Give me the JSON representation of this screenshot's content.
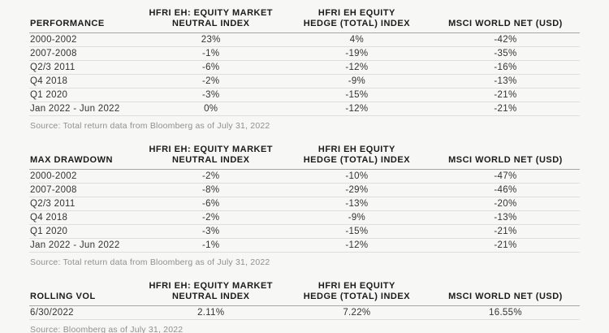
{
  "colors": {
    "background": "#f7f7f5",
    "header_text": "#1b1b1b",
    "body_text": "#333333",
    "source_text": "#8f8f8f",
    "header_divider": "#a6a6a6",
    "row_divider": "#dedede"
  },
  "chart_data": [
    {
      "type": "table",
      "title": "PERFORMANCE",
      "columns": [
        "HFRI EH: EQUITY MARKET\nNEUTRAL INDEX",
        "HFRI EH EQUITY\nHEDGE (TOTAL) INDEX",
        "MSCI WORLD NET (USD)"
      ],
      "rows": [
        [
          "2000-2002",
          "23%",
          "4%",
          "-42%"
        ],
        [
          "2007-2008",
          "-1%",
          "-19%",
          "-35%"
        ],
        [
          "Q2/3 2011",
          "-6%",
          "-12%",
          "-16%"
        ],
        [
          "Q4 2018",
          "-2%",
          "-9%",
          "-13%"
        ],
        [
          "Q1 2020",
          "-3%",
          "-15%",
          "-21%"
        ],
        [
          "Jan 2022 - Jun 2022",
          "0%",
          "-12%",
          "-21%"
        ]
      ],
      "source": "Source: Total return data from Bloomberg as of July 31, 2022"
    },
    {
      "type": "table",
      "title": "MAX DRAWDOWN",
      "columns": [
        "HFRI EH: EQUITY MARKET\nNEUTRAL INDEX",
        "HFRI EH EQUITY\nHEDGE (TOTAL) INDEX",
        "MSCI WORLD NET (USD)"
      ],
      "rows": [
        [
          "2000-2002",
          "-2%",
          "-10%",
          "-47%"
        ],
        [
          "2007-2008",
          "-8%",
          "-29%",
          "-46%"
        ],
        [
          "Q2/3 2011",
          "-6%",
          "-13%",
          "-20%"
        ],
        [
          "Q4 2018",
          "-2%",
          "-9%",
          "-13%"
        ],
        [
          "Q1 2020",
          "-3%",
          "-15%",
          "-21%"
        ],
        [
          "Jan 2022 - Jun 2022",
          "-1%",
          "-12%",
          "-21%"
        ]
      ],
      "source": "Source: Total return data from Bloomberg as of July 31, 2022"
    },
    {
      "type": "table",
      "title": "ROLLING VOL",
      "columns": [
        "HFRI EH: EQUITY MARKET\nNEUTRAL INDEX",
        "HFRI EH EQUITY\nHEDGE (TOTAL) INDEX",
        "MSCI WORLD NET (USD)"
      ],
      "rows": [
        [
          "6/30/2022",
          "2.11%",
          "7.22%",
          "16.55%"
        ]
      ],
      "source": "Source: Bloomberg as of July 31, 2022"
    }
  ]
}
